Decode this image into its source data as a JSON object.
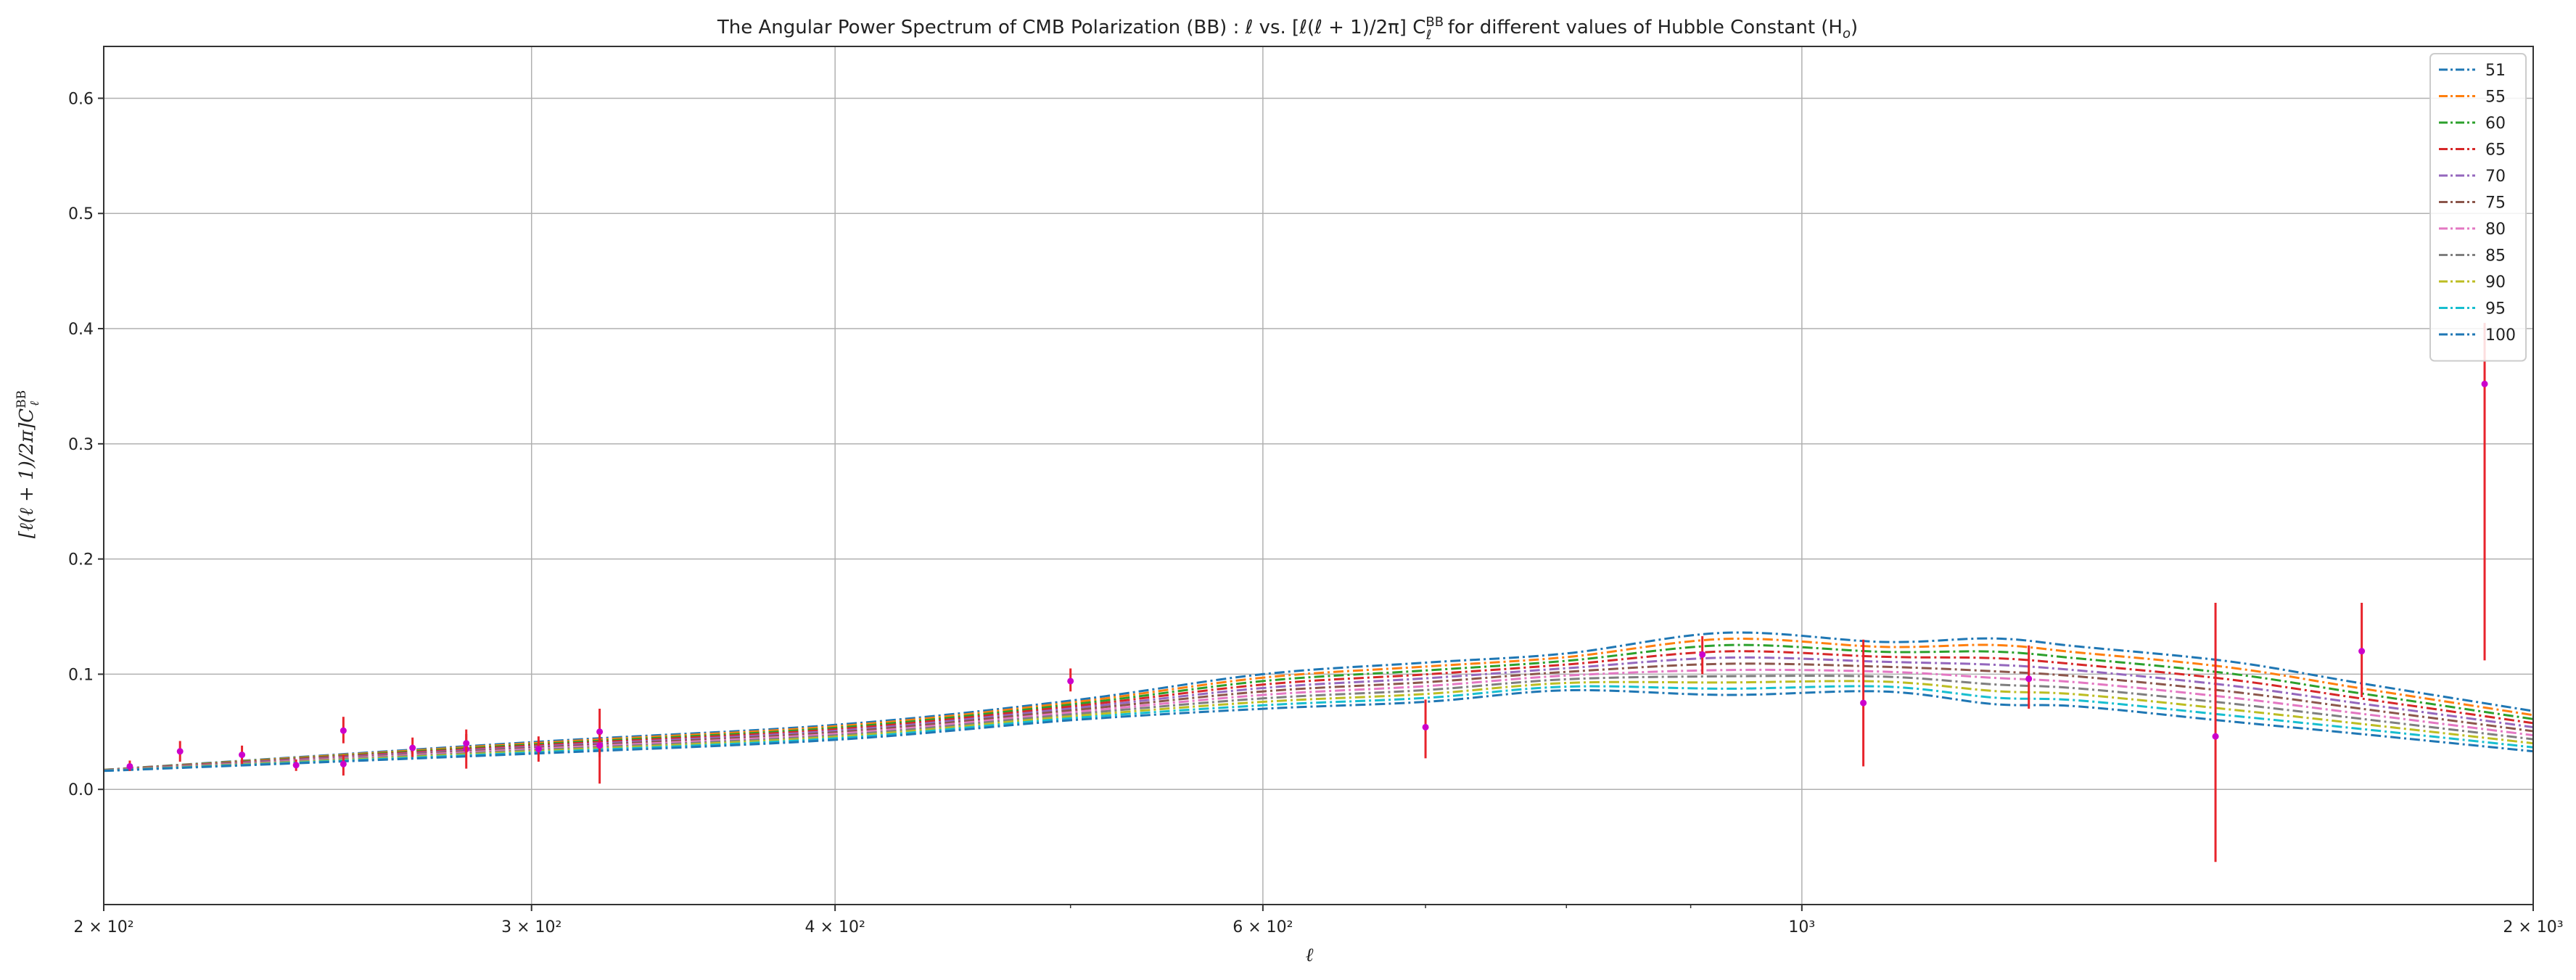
{
  "chart_data": {
    "type": "line",
    "title": "The Angular Power Spectrum of CMB Polarization (BB) : ℓ vs. [ℓ(ℓ + 1)/2π]  C",
    "title_sup": "BB",
    "title_sub": "ℓ",
    "title_tail": " for different values of Hubble Constant (H",
    "title_tail_sub": "o",
    "title_end": ")",
    "xlabel": "ℓ",
    "ylabel": "[ℓ(ℓ + 1)/2π]C",
    "ylabel_sup": "BB",
    "ylabel_sub": "ℓ",
    "x_scale": "log",
    "xlim": [
      200,
      2000
    ],
    "ylim": [
      -0.1,
      0.645
    ],
    "x_ticks": [
      {
        "value": 200,
        "label": "2 × 10²"
      },
      {
        "value": 300,
        "label": "3 × 10²"
      },
      {
        "value": 400,
        "label": "4 × 10²"
      },
      {
        "value": 600,
        "label": "6 × 10²"
      },
      {
        "value": 1000,
        "label": "10³"
      },
      {
        "value": 2000,
        "label": "2 × 10³"
      }
    ],
    "x_minor_ticks": [
      500,
      700,
      800,
      900
    ],
    "y_ticks": [
      {
        "value": 0.0,
        "label": "0.0"
      },
      {
        "value": 0.1,
        "label": "0.1"
      },
      {
        "value": 0.2,
        "label": "0.2"
      },
      {
        "value": 0.3,
        "label": "0.3"
      },
      {
        "value": 0.4,
        "label": "0.4"
      },
      {
        "value": 0.5,
        "label": "0.5"
      },
      {
        "value": 0.6,
        "label": "0.6"
      }
    ],
    "grid": true,
    "legend_position": "top-right",
    "curve_x": [
      200,
      300,
      400,
      500,
      600,
      700,
      800,
      930,
      1080,
      1200,
      1300,
      1500,
      1700,
      2000
    ],
    "base_low": [
      0.016,
      0.031,
      0.043,
      0.06,
      0.07,
      0.076,
      0.086,
      0.082,
      0.085,
      0.074,
      0.072,
      0.059,
      0.048,
      0.033
    ],
    "base_high": [
      0.017,
      0.041,
      0.056,
      0.077,
      0.1,
      0.11,
      0.118,
      0.136,
      0.128,
      0.131,
      0.124,
      0.111,
      0.092,
      0.068
    ],
    "series": [
      {
        "name": "51",
        "color": "#1f77b4"
      },
      {
        "name": "55",
        "color": "#ff7f0e"
      },
      {
        "name": "60",
        "color": "#2ca02c"
      },
      {
        "name": "65",
        "color": "#d62728"
      },
      {
        "name": "70",
        "color": "#9467bd"
      },
      {
        "name": "75",
        "color": "#8c564b"
      },
      {
        "name": "80",
        "color": "#e377c2"
      },
      {
        "name": "85",
        "color": "#7f7f7f"
      },
      {
        "name": "90",
        "color": "#bcbd22"
      },
      {
        "name": "95",
        "color": "#17becf"
      },
      {
        "name": "100",
        "color": "#1f77b4"
      }
    ],
    "data_points": {
      "marker_color": "#cc00cc",
      "errorbar_color": "#e8242c",
      "points": [
        {
          "x": 205,
          "y": 0.02,
          "lo": 0.016,
          "hi": 0.025
        },
        {
          "x": 215,
          "y": 0.033,
          "lo": 0.024,
          "hi": 0.042
        },
        {
          "x": 228,
          "y": 0.03,
          "lo": 0.022,
          "hi": 0.038
        },
        {
          "x": 240,
          "y": 0.021,
          "lo": 0.016,
          "hi": 0.026
        },
        {
          "x": 251,
          "y": 0.051,
          "lo": 0.04,
          "hi": 0.063
        },
        {
          "x": 251,
          "y": 0.022,
          "lo": 0.012,
          "hi": 0.03
        },
        {
          "x": 268,
          "y": 0.036,
          "lo": 0.028,
          "hi": 0.045
        },
        {
          "x": 282,
          "y": 0.035,
          "lo": 0.018,
          "hi": 0.052
        },
        {
          "x": 282,
          "y": 0.04,
          "lo": 0.032,
          "hi": 0.048
        },
        {
          "x": 302,
          "y": 0.035,
          "lo": 0.024,
          "hi": 0.046
        },
        {
          "x": 320,
          "y": 0.05,
          "lo": 0.005,
          "hi": 0.07
        },
        {
          "x": 320,
          "y": 0.038,
          "lo": 0.028,
          "hi": 0.048
        },
        {
          "x": 500,
          "y": 0.094,
          "lo": 0.085,
          "hi": 0.105
        },
        {
          "x": 700,
          "y": 0.054,
          "lo": 0.027,
          "hi": 0.078
        },
        {
          "x": 910,
          "y": 0.117,
          "lo": 0.1,
          "hi": 0.133
        },
        {
          "x": 1060,
          "y": 0.075,
          "lo": 0.02,
          "hi": 0.13
        },
        {
          "x": 1240,
          "y": 0.096,
          "lo": 0.07,
          "hi": 0.125
        },
        {
          "x": 1480,
          "y": 0.046,
          "lo": -0.063,
          "hi": 0.162
        },
        {
          "x": 1700,
          "y": 0.12,
          "lo": 0.08,
          "hi": 0.162
        },
        {
          "x": 1910,
          "y": 0.352,
          "lo": 0.112,
          "hi": 0.405
        }
      ]
    }
  }
}
